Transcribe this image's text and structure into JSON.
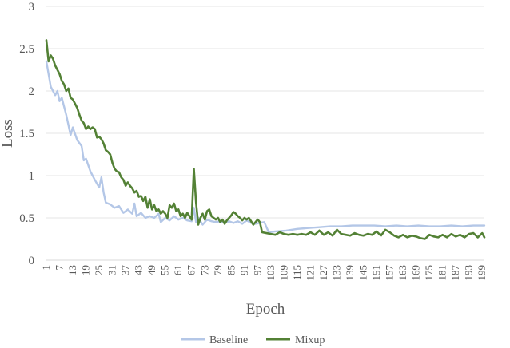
{
  "chart_data": {
    "type": "line",
    "xlabel": "Epoch",
    "ylabel": "Loss",
    "ylim": [
      0,
      3
    ],
    "yticks": [
      "0",
      "0.5",
      "1",
      "1.5",
      "2",
      "2.5",
      "3"
    ],
    "xlim": [
      1,
      200
    ],
    "xticks": [
      "1",
      "7",
      "13",
      "19",
      "25",
      "31",
      "37",
      "43",
      "49",
      "55",
      "61",
      "67",
      "73",
      "79",
      "85",
      "91",
      "97",
      "103",
      "109",
      "115",
      "121",
      "127",
      "133",
      "139",
      "145",
      "151",
      "157",
      "163",
      "169",
      "175",
      "181",
      "187",
      "193",
      "199"
    ],
    "grid": "horizontal",
    "legend_position": "bottom",
    "series": [
      {
        "name": "Baseline",
        "color": "#b4c7e7",
        "points": [
          [
            1,
            2.35
          ],
          [
            3,
            2.05
          ],
          [
            5,
            1.95
          ],
          [
            6,
            2.0
          ],
          [
            7,
            1.88
          ],
          [
            8,
            1.92
          ],
          [
            10,
            1.72
          ],
          [
            12,
            1.48
          ],
          [
            13,
            1.57
          ],
          [
            15,
            1.42
          ],
          [
            17,
            1.35
          ],
          [
            18,
            1.18
          ],
          [
            19,
            1.2
          ],
          [
            21,
            1.05
          ],
          [
            23,
            0.95
          ],
          [
            25,
            0.86
          ],
          [
            26,
            0.98
          ],
          [
            27,
            0.8
          ],
          [
            28,
            0.68
          ],
          [
            30,
            0.66
          ],
          [
            32,
            0.62
          ],
          [
            34,
            0.64
          ],
          [
            36,
            0.56
          ],
          [
            38,
            0.6
          ],
          [
            40,
            0.55
          ],
          [
            41,
            0.67
          ],
          [
            42,
            0.52
          ],
          [
            44,
            0.56
          ],
          [
            46,
            0.5
          ],
          [
            48,
            0.52
          ],
          [
            50,
            0.5
          ],
          [
            52,
            0.55
          ],
          [
            53,
            0.45
          ],
          [
            55,
            0.5
          ],
          [
            57,
            0.47
          ],
          [
            59,
            0.52
          ],
          [
            61,
            0.48
          ],
          [
            63,
            0.5
          ],
          [
            65,
            0.47
          ],
          [
            67,
            0.46
          ],
          [
            68,
            0.62
          ],
          [
            69,
            0.45
          ],
          [
            70,
            0.5
          ],
          [
            72,
            0.42
          ],
          [
            74,
            0.48
          ],
          [
            76,
            0.46
          ],
          [
            78,
            0.45
          ],
          [
            80,
            0.46
          ],
          [
            82,
            0.44
          ],
          [
            84,
            0.46
          ],
          [
            86,
            0.44
          ],
          [
            88,
            0.46
          ],
          [
            90,
            0.43
          ],
          [
            92,
            0.47
          ],
          [
            94,
            0.44
          ],
          [
            96,
            0.43
          ],
          [
            98,
            0.44
          ],
          [
            100,
            0.45
          ],
          [
            102,
            0.33
          ],
          [
            105,
            0.34
          ],
          [
            110,
            0.35
          ],
          [
            115,
            0.37
          ],
          [
            120,
            0.38
          ],
          [
            125,
            0.39
          ],
          [
            130,
            0.4
          ],
          [
            135,
            0.4
          ],
          [
            140,
            0.41
          ],
          [
            145,
            0.41
          ],
          [
            150,
            0.41
          ],
          [
            155,
            0.4
          ],
          [
            160,
            0.41
          ],
          [
            165,
            0.4
          ],
          [
            170,
            0.41
          ],
          [
            175,
            0.4
          ],
          [
            180,
            0.4
          ],
          [
            185,
            0.41
          ],
          [
            190,
            0.4
          ],
          [
            195,
            0.41
          ],
          [
            200,
            0.41
          ]
        ]
      },
      {
        "name": "Mixup",
        "color": "#538135",
        "points": [
          [
            1,
            2.6
          ],
          [
            2,
            2.35
          ],
          [
            3,
            2.42
          ],
          [
            4,
            2.38
          ],
          [
            5,
            2.3
          ],
          [
            6,
            2.25
          ],
          [
            7,
            2.2
          ],
          [
            8,
            2.12
          ],
          [
            9,
            2.08
          ],
          [
            10,
            2.0
          ],
          [
            11,
            2.03
          ],
          [
            12,
            1.92
          ],
          [
            13,
            1.9
          ],
          [
            14,
            1.85
          ],
          [
            15,
            1.8
          ],
          [
            16,
            1.72
          ],
          [
            17,
            1.65
          ],
          [
            18,
            1.62
          ],
          [
            19,
            1.55
          ],
          [
            20,
            1.58
          ],
          [
            21,
            1.55
          ],
          [
            22,
            1.57
          ],
          [
            23,
            1.55
          ],
          [
            24,
            1.45
          ],
          [
            25,
            1.46
          ],
          [
            26,
            1.43
          ],
          [
            27,
            1.38
          ],
          [
            28,
            1.3
          ],
          [
            29,
            1.28
          ],
          [
            30,
            1.25
          ],
          [
            31,
            1.15
          ],
          [
            32,
            1.08
          ],
          [
            33,
            1.05
          ],
          [
            34,
            1.04
          ],
          [
            35,
            0.98
          ],
          [
            36,
            0.95
          ],
          [
            37,
            0.88
          ],
          [
            38,
            0.92
          ],
          [
            39,
            0.88
          ],
          [
            40,
            0.85
          ],
          [
            41,
            0.8
          ],
          [
            42,
            0.82
          ],
          [
            43,
            0.75
          ],
          [
            44,
            0.76
          ],
          [
            45,
            0.7
          ],
          [
            46,
            0.75
          ],
          [
            47,
            0.62
          ],
          [
            48,
            0.72
          ],
          [
            49,
            0.6
          ],
          [
            50,
            0.65
          ],
          [
            51,
            0.58
          ],
          [
            52,
            0.6
          ],
          [
            53,
            0.55
          ],
          [
            54,
            0.58
          ],
          [
            55,
            0.55
          ],
          [
            56,
            0.5
          ],
          [
            57,
            0.65
          ],
          [
            58,
            0.62
          ],
          [
            59,
            0.67
          ],
          [
            60,
            0.58
          ],
          [
            61,
            0.6
          ],
          [
            62,
            0.52
          ],
          [
            63,
            0.55
          ],
          [
            64,
            0.5
          ],
          [
            65,
            0.56
          ],
          [
            66,
            0.52
          ],
          [
            67,
            0.48
          ],
          [
            68,
            1.08
          ],
          [
            69,
            0.68
          ],
          [
            70,
            0.42
          ],
          [
            71,
            0.5
          ],
          [
            72,
            0.55
          ],
          [
            73,
            0.48
          ],
          [
            74,
            0.58
          ],
          [
            75,
            0.6
          ],
          [
            76,
            0.52
          ],
          [
            77,
            0.5
          ],
          [
            78,
            0.48
          ],
          [
            79,
            0.5
          ],
          [
            80,
            0.45
          ],
          [
            81,
            0.48
          ],
          [
            82,
            0.43
          ],
          [
            83,
            0.47
          ],
          [
            84,
            0.5
          ],
          [
            85,
            0.53
          ],
          [
            86,
            0.57
          ],
          [
            87,
            0.55
          ],
          [
            88,
            0.52
          ],
          [
            89,
            0.5
          ],
          [
            90,
            0.47
          ],
          [
            91,
            0.5
          ],
          [
            92,
            0.48
          ],
          [
            93,
            0.5
          ],
          [
            94,
            0.46
          ],
          [
            95,
            0.42
          ],
          [
            96,
            0.45
          ],
          [
            97,
            0.48
          ],
          [
            98,
            0.45
          ],
          [
            99,
            0.33
          ],
          [
            101,
            0.32
          ],
          [
            103,
            0.31
          ],
          [
            105,
            0.3
          ],
          [
            107,
            0.33
          ],
          [
            109,
            0.31
          ],
          [
            111,
            0.3
          ],
          [
            113,
            0.31
          ],
          [
            115,
            0.3
          ],
          [
            117,
            0.31
          ],
          [
            119,
            0.3
          ],
          [
            121,
            0.33
          ],
          [
            123,
            0.3
          ],
          [
            125,
            0.35
          ],
          [
            127,
            0.3
          ],
          [
            129,
            0.33
          ],
          [
            131,
            0.29
          ],
          [
            133,
            0.36
          ],
          [
            135,
            0.31
          ],
          [
            137,
            0.3
          ],
          [
            139,
            0.29
          ],
          [
            141,
            0.32
          ],
          [
            143,
            0.3
          ],
          [
            145,
            0.29
          ],
          [
            147,
            0.31
          ],
          [
            149,
            0.3
          ],
          [
            151,
            0.34
          ],
          [
            153,
            0.29
          ],
          [
            155,
            0.36
          ],
          [
            157,
            0.33
          ],
          [
            159,
            0.29
          ],
          [
            161,
            0.27
          ],
          [
            163,
            0.3
          ],
          [
            165,
            0.27
          ],
          [
            167,
            0.29
          ],
          [
            169,
            0.28
          ],
          [
            171,
            0.26
          ],
          [
            173,
            0.25
          ],
          [
            175,
            0.3
          ],
          [
            177,
            0.28
          ],
          [
            179,
            0.27
          ],
          [
            181,
            0.3
          ],
          [
            183,
            0.27
          ],
          [
            185,
            0.31
          ],
          [
            187,
            0.28
          ],
          [
            189,
            0.3
          ],
          [
            191,
            0.27
          ],
          [
            193,
            0.31
          ],
          [
            195,
            0.32
          ],
          [
            197,
            0.27
          ],
          [
            199,
            0.32
          ],
          [
            200,
            0.27
          ]
        ]
      }
    ]
  }
}
